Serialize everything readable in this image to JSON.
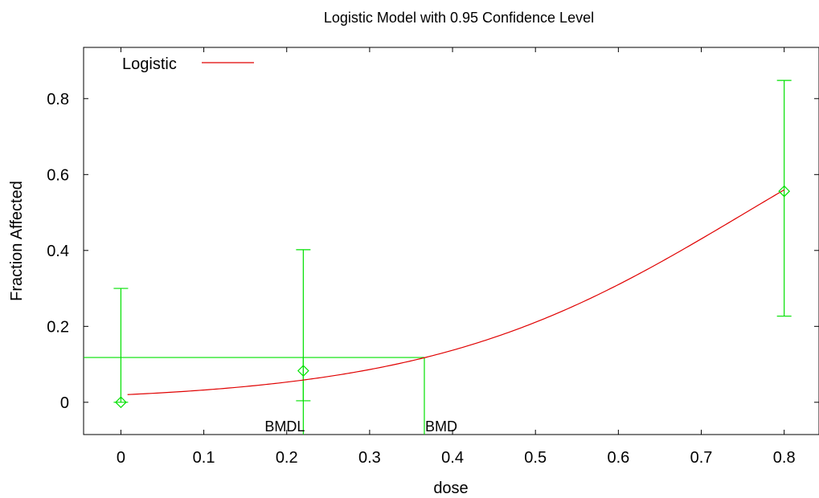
{
  "chart_data": {
    "type": "line",
    "title": "Logistic Model with 0.95 Confidence Level",
    "xlabel": "dose",
    "ylabel": "Fraction Affected",
    "xlim": [
      -0.045,
      0.842
    ],
    "ylim": [
      -0.085,
      0.935
    ],
    "x_ticks": [
      0,
      0.1,
      0.2,
      0.3,
      0.4,
      0.5,
      0.6,
      0.7,
      0.8
    ],
    "y_ticks": [
      0,
      0.2,
      0.4,
      0.6,
      0.8
    ],
    "x_tick_labels": [
      "0",
      "0.1",
      "0.2",
      "0.3",
      "0.4",
      "0.5",
      "0.6",
      "0.7",
      "0.8"
    ],
    "y_tick_labels": [
      "0",
      "0.2",
      "0.4",
      "0.6",
      "0.8"
    ],
    "legend": {
      "position": "top-left",
      "label": "Logistic"
    },
    "model_curve": {
      "name": "Logistic",
      "color": "#e00000",
      "x_start": 0.008,
      "x_end": 0.8,
      "intercept": -3.92,
      "slope": 5.2
    },
    "observations": {
      "color": "#00e000",
      "points": [
        {
          "x": 0,
          "y": 0,
          "lower": 0.0,
          "upper": 0.3
        },
        {
          "x": 0.22,
          "y": 0.083,
          "lower": 0.004,
          "upper": 0.402
        },
        {
          "x": 0.8,
          "y": 0.556,
          "lower": 0.227,
          "upper": 0.848
        }
      ]
    },
    "benchmarks": {
      "bmr_level": 0.118,
      "bmd": 0.366,
      "bmdl": 0.22,
      "bmd_label": "BMD",
      "bmdl_label": "BMDL"
    }
  }
}
